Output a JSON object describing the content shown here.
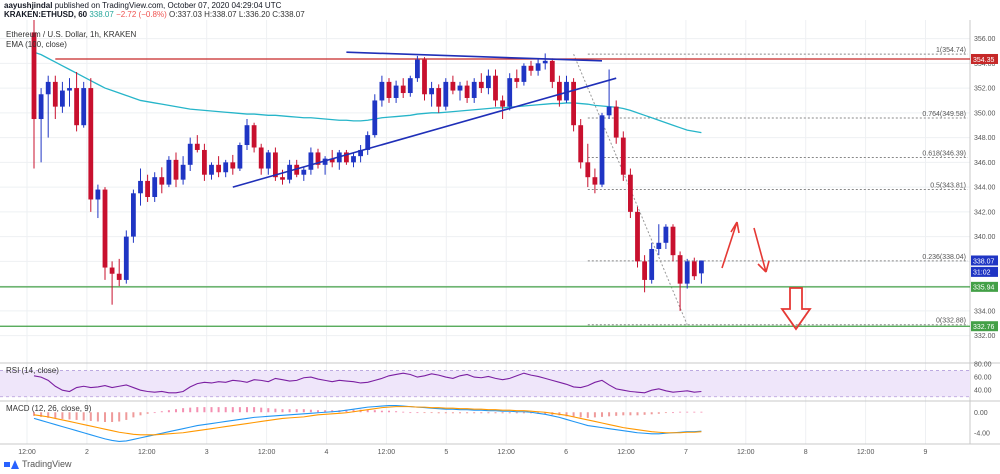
{
  "header": {
    "line1_user": "aayushjindal",
    "line1_rest": " published on TradingView.com, October 07, 2020 04:29:04 UTC",
    "symbol": "KRAKEN:ETHUSD, 60",
    "last": "338.07",
    "change": "−2.72 (−0.8%)",
    "ohlc": "O:337.03 H:338.07 L:336.20 C:338.07"
  },
  "footer": {
    "brand": "TradingView"
  },
  "colors": {
    "up": "#26a69a",
    "down": "#ef5350",
    "candle_body": "#1f35c4",
    "candle_body_down": "#c8102e",
    "ema": "#26b5c9",
    "trendline": "#1f2fb8",
    "resistance": "#c62828",
    "support": "#43a047",
    "fib": "#888888",
    "rsi_line": "#7b1fa2",
    "rsi_band": "#efe6fa",
    "macd_line": "#2196f3",
    "signal_line": "#ff9800",
    "arrow_red": "#e53935"
  },
  "chart_data": [
    {
      "type": "candlestick",
      "title": "Ethereum / U.S. Dollar, 1h, KRAKEN",
      "pane": "price",
      "ylim": [
        331,
        357.5
      ],
      "y_ticks": [
        356.0,
        354.0,
        352.0,
        350.0,
        348.0,
        346.0,
        344.0,
        342.0,
        340.0,
        338.0,
        336.0,
        334.0,
        332.0
      ],
      "x_tick_labels": [
        "12:00",
        "2",
        "12:00",
        "3",
        "12:00",
        "4",
        "12:00",
        "5",
        "12:00",
        "6",
        "12:00",
        "7",
        "12:00",
        "8",
        "12:00",
        "9"
      ],
      "candles": [
        {
          "o": 356.5,
          "h": 357.5,
          "l": 345.5,
          "c": 349.5
        },
        {
          "o": 349.5,
          "h": 352.0,
          "l": 346.0,
          "c": 351.5
        },
        {
          "o": 351.5,
          "h": 353.0,
          "l": 348.0,
          "c": 352.5
        },
        {
          "o": 352.5,
          "h": 353.0,
          "l": 349.5,
          "c": 350.5
        },
        {
          "o": 350.5,
          "h": 352.5,
          "l": 350.0,
          "c": 351.8
        },
        {
          "o": 351.8,
          "h": 352.8,
          "l": 350.5,
          "c": 352.0
        },
        {
          "o": 352.0,
          "h": 353.3,
          "l": 348.5,
          "c": 349.0
        },
        {
          "o": 349.0,
          "h": 352.5,
          "l": 348.8,
          "c": 352.0
        },
        {
          "o": 352.0,
          "h": 352.8,
          "l": 342.0,
          "c": 343.0
        },
        {
          "o": 343.0,
          "h": 344.2,
          "l": 341.5,
          "c": 343.8
        },
        {
          "o": 343.8,
          "h": 344.0,
          "l": 336.5,
          "c": 337.5
        },
        {
          "o": 337.5,
          "h": 338.0,
          "l": 334.5,
          "c": 337.0
        },
        {
          "o": 337.0,
          "h": 338.2,
          "l": 336.0,
          "c": 336.5
        },
        {
          "o": 336.5,
          "h": 340.5,
          "l": 336.2,
          "c": 340.0
        },
        {
          "o": 340.0,
          "h": 343.8,
          "l": 339.5,
          "c": 343.5
        },
        {
          "o": 343.5,
          "h": 345.5,
          "l": 342.5,
          "c": 344.5
        },
        {
          "o": 344.5,
          "h": 345.0,
          "l": 342.8,
          "c": 343.2
        },
        {
          "o": 343.2,
          "h": 345.2,
          "l": 342.8,
          "c": 344.8
        },
        {
          "o": 344.8,
          "h": 345.6,
          "l": 343.5,
          "c": 344.2
        },
        {
          "o": 344.2,
          "h": 346.5,
          "l": 344.0,
          "c": 346.2
        },
        {
          "o": 346.2,
          "h": 346.8,
          "l": 344.0,
          "c": 344.6
        },
        {
          "o": 344.6,
          "h": 346.5,
          "l": 344.2,
          "c": 345.8
        },
        {
          "o": 345.8,
          "h": 348.0,
          "l": 345.3,
          "c": 347.5
        },
        {
          "o": 347.5,
          "h": 348.2,
          "l": 346.8,
          "c": 347.0
        },
        {
          "o": 347.0,
          "h": 347.5,
          "l": 344.5,
          "c": 345.0
        },
        {
          "o": 345.0,
          "h": 346.0,
          "l": 344.6,
          "c": 345.8
        },
        {
          "o": 345.8,
          "h": 346.5,
          "l": 344.8,
          "c": 345.2
        },
        {
          "o": 345.2,
          "h": 346.2,
          "l": 344.8,
          "c": 346.0
        },
        {
          "o": 346.0,
          "h": 346.6,
          "l": 345.0,
          "c": 345.5
        },
        {
          "o": 345.5,
          "h": 347.6,
          "l": 345.3,
          "c": 347.4
        },
        {
          "o": 347.4,
          "h": 349.5,
          "l": 347.0,
          "c": 349.0
        },
        {
          "o": 349.0,
          "h": 349.2,
          "l": 346.8,
          "c": 347.2
        },
        {
          "o": 347.2,
          "h": 347.5,
          "l": 345.0,
          "c": 345.5
        },
        {
          "o": 345.5,
          "h": 347.0,
          "l": 345.0,
          "c": 346.8
        },
        {
          "o": 346.8,
          "h": 347.2,
          "l": 344.5,
          "c": 344.8
        },
        {
          "o": 344.8,
          "h": 345.4,
          "l": 344.2,
          "c": 344.6
        },
        {
          "o": 344.6,
          "h": 346.2,
          "l": 344.3,
          "c": 345.8
        },
        {
          "o": 345.8,
          "h": 346.2,
          "l": 344.8,
          "c": 345.0
        },
        {
          "o": 345.0,
          "h": 345.6,
          "l": 344.5,
          "c": 345.4
        },
        {
          "o": 345.4,
          "h": 347.2,
          "l": 345.0,
          "c": 346.8
        },
        {
          "o": 346.8,
          "h": 347.1,
          "l": 345.5,
          "c": 345.8
        },
        {
          "o": 345.8,
          "h": 346.5,
          "l": 345.0,
          "c": 346.3
        },
        {
          "o": 346.3,
          "h": 347.0,
          "l": 345.6,
          "c": 346.0
        },
        {
          "o": 346.0,
          "h": 347.0,
          "l": 345.4,
          "c": 346.8
        },
        {
          "o": 346.8,
          "h": 347.0,
          "l": 345.8,
          "c": 346.0
        },
        {
          "o": 346.0,
          "h": 346.8,
          "l": 345.6,
          "c": 346.5
        },
        {
          "o": 346.5,
          "h": 347.4,
          "l": 346.0,
          "c": 347.0
        },
        {
          "o": 347.0,
          "h": 348.5,
          "l": 346.6,
          "c": 348.2
        },
        {
          "o": 348.2,
          "h": 351.5,
          "l": 348.0,
          "c": 351.0
        },
        {
          "o": 351.0,
          "h": 353.0,
          "l": 350.5,
          "c": 352.5
        },
        {
          "o": 352.5,
          "h": 352.8,
          "l": 350.8,
          "c": 351.2
        },
        {
          "o": 351.2,
          "h": 352.6,
          "l": 350.8,
          "c": 352.2
        },
        {
          "o": 352.2,
          "h": 352.8,
          "l": 351.2,
          "c": 351.6
        },
        {
          "o": 351.6,
          "h": 353.0,
          "l": 351.3,
          "c": 352.8
        },
        {
          "o": 352.8,
          "h": 354.6,
          "l": 352.5,
          "c": 354.3
        },
        {
          "o": 354.3,
          "h": 354.5,
          "l": 351.0,
          "c": 351.5
        },
        {
          "o": 351.5,
          "h": 352.5,
          "l": 350.5,
          "c": 352.0
        },
        {
          "o": 352.0,
          "h": 352.3,
          "l": 350.0,
          "c": 350.5
        },
        {
          "o": 350.5,
          "h": 352.8,
          "l": 350.2,
          "c": 352.5
        },
        {
          "o": 352.5,
          "h": 353.0,
          "l": 351.5,
          "c": 351.8
        },
        {
          "o": 351.8,
          "h": 352.5,
          "l": 351.0,
          "c": 352.2
        },
        {
          "o": 352.2,
          "h": 352.6,
          "l": 350.8,
          "c": 351.2
        },
        {
          "o": 351.2,
          "h": 352.8,
          "l": 350.8,
          "c": 352.5
        },
        {
          "o": 352.5,
          "h": 353.2,
          "l": 351.6,
          "c": 352.0
        },
        {
          "o": 352.0,
          "h": 353.5,
          "l": 351.5,
          "c": 353.0
        },
        {
          "o": 353.0,
          "h": 353.5,
          "l": 350.5,
          "c": 351.0
        },
        {
          "o": 351.0,
          "h": 351.4,
          "l": 349.5,
          "c": 350.5
        },
        {
          "o": 350.5,
          "h": 353.2,
          "l": 350.2,
          "c": 352.8
        },
        {
          "o": 352.8,
          "h": 353.5,
          "l": 352.0,
          "c": 352.5
        },
        {
          "o": 352.5,
          "h": 354.0,
          "l": 352.2,
          "c": 353.8
        },
        {
          "o": 353.8,
          "h": 354.2,
          "l": 353.0,
          "c": 353.4
        },
        {
          "o": 353.4,
          "h": 354.4,
          "l": 353.0,
          "c": 354.0
        },
        {
          "o": 354.0,
          "h": 354.8,
          "l": 353.5,
          "c": 354.2
        },
        {
          "o": 354.2,
          "h": 354.4,
          "l": 352.0,
          "c": 352.5
        },
        {
          "o": 352.5,
          "h": 353.0,
          "l": 350.5,
          "c": 351.0
        },
        {
          "o": 351.0,
          "h": 353.0,
          "l": 350.8,
          "c": 352.5
        },
        {
          "o": 352.5,
          "h": 352.8,
          "l": 348.5,
          "c": 349.0
        },
        {
          "o": 349.0,
          "h": 349.5,
          "l": 345.5,
          "c": 346.0
        },
        {
          "o": 346.0,
          "h": 347.5,
          "l": 344.0,
          "c": 344.8
        },
        {
          "o": 344.8,
          "h": 345.5,
          "l": 343.5,
          "c": 344.2
        },
        {
          "o": 344.2,
          "h": 350.0,
          "l": 344.0,
          "c": 349.8
        },
        {
          "o": 349.8,
          "h": 353.5,
          "l": 349.5,
          "c": 350.5
        },
        {
          "o": 350.5,
          "h": 351.0,
          "l": 347.5,
          "c": 348.0
        },
        {
          "o": 348.0,
          "h": 348.5,
          "l": 344.5,
          "c": 345.0
        },
        {
          "o": 345.0,
          "h": 345.5,
          "l": 341.5,
          "c": 342.0
        },
        {
          "o": 342.0,
          "h": 342.4,
          "l": 337.5,
          "c": 338.0
        },
        {
          "o": 338.0,
          "h": 338.5,
          "l": 335.5,
          "c": 336.5
        },
        {
          "o": 336.5,
          "h": 339.5,
          "l": 336.2,
          "c": 339.0
        },
        {
          "o": 339.0,
          "h": 341.0,
          "l": 338.5,
          "c": 339.5
        },
        {
          "o": 339.5,
          "h": 341.0,
          "l": 339.0,
          "c": 340.8
        },
        {
          "o": 340.8,
          "h": 341.0,
          "l": 338.0,
          "c": 338.5
        },
        {
          "o": 338.5,
          "h": 338.8,
          "l": 334.0,
          "c": 336.2
        },
        {
          "o": 336.2,
          "h": 338.2,
          "l": 335.8,
          "c": 338.0
        },
        {
          "o": 338.0,
          "h": 338.3,
          "l": 336.5,
          "c": 336.8
        },
        {
          "o": 337.03,
          "h": 338.07,
          "l": 336.2,
          "c": 338.07
        }
      ],
      "ema_100": {
        "label": "EMA (100, close)",
        "values": [
          354.9,
          354.7,
          354.4,
          354.1,
          353.8,
          353.5,
          353.2,
          352.9,
          352.6,
          352.3,
          352.0,
          351.8,
          351.6,
          351.4,
          351.2,
          351.0,
          350.9,
          350.8,
          350.7,
          350.6,
          350.5,
          350.4,
          350.3,
          350.25,
          350.2,
          350.15,
          350.1,
          350.05,
          350.0,
          349.95,
          349.9,
          349.9,
          349.85,
          349.8,
          349.8,
          349.75,
          349.7,
          349.65,
          349.6,
          349.6,
          349.55,
          349.5,
          349.45,
          349.4,
          349.4,
          349.35,
          349.35,
          349.4,
          349.5,
          349.6,
          349.65,
          349.7,
          349.75,
          349.8,
          349.9,
          349.95,
          350.0,
          350.0,
          350.05,
          350.1,
          350.15,
          350.2,
          350.25,
          350.3,
          350.35,
          350.4,
          350.4,
          350.45,
          350.5,
          350.55,
          350.6,
          350.65,
          350.7,
          350.75,
          350.75,
          350.8,
          350.8,
          350.75,
          350.7,
          350.6,
          350.55,
          350.5,
          350.45,
          350.35,
          350.2,
          350.0,
          349.8,
          349.6,
          349.4,
          349.2,
          349.0,
          348.8,
          348.6,
          348.5,
          348.4
        ]
      },
      "annotations": {
        "resistance_level": 354.35,
        "support_levels": [
          335.94,
          332.76
        ],
        "rising_trendline": [
          {
            "i": 28,
            "p": 344.0
          },
          {
            "i": 82,
            "p": 352.8
          }
        ],
        "falling_trendline": [
          {
            "i": 44,
            "p": 354.9
          },
          {
            "i": 80,
            "p": 354.2
          }
        ],
        "fib_levels": [
          {
            "ratio": "1",
            "price": 354.74,
            "label": "1(354.74)"
          },
          {
            "ratio": "0.764",
            "price": 349.58,
            "label": "0.764(349.58)"
          },
          {
            "ratio": "0.618",
            "price": 346.39,
            "label": "0.618(346.39)"
          },
          {
            "ratio": "0.5",
            "price": 343.81,
            "label": "0.5(343.81)"
          },
          {
            "ratio": "0.236",
            "price": 338.04,
            "label": "0.236(338.04)"
          },
          {
            "ratio": "0",
            "price": 332.88,
            "label": "0(332.88)"
          }
        ],
        "price_labels": [
          {
            "text": "354.35",
            "price": 354.35,
            "bg": "#c62828"
          },
          {
            "text": "338.07",
            "price": 338.07,
            "bg": "#1f35c4"
          },
          {
            "text": "31:02",
            "price": 337.15,
            "bg": "#1f35c4"
          },
          {
            "text": "335.94",
            "price": 335.94,
            "bg": "#43a047"
          },
          {
            "text": "332.76",
            "price": 332.76,
            "bg": "#43a047"
          }
        ]
      }
    },
    {
      "type": "line",
      "pane": "rsi",
      "title": "RSI (14, close)",
      "ylim": [
        25,
        80
      ],
      "y_ticks": [
        80.0,
        60.0,
        40.0
      ],
      "band": [
        30,
        70
      ],
      "values": [
        62,
        60,
        55,
        46,
        40,
        38,
        44,
        46,
        44,
        45,
        47,
        44,
        46,
        48,
        44,
        40,
        38,
        37,
        38,
        36,
        36,
        38,
        45,
        50,
        52,
        51,
        53,
        52,
        55,
        54,
        52,
        56,
        55,
        53,
        58,
        56,
        54,
        55,
        59,
        60,
        57,
        55,
        53,
        55,
        54,
        53,
        51,
        52,
        55,
        58,
        62,
        64,
        66,
        64,
        60,
        62,
        65,
        63,
        60,
        58,
        62,
        64,
        60,
        59,
        61,
        58,
        56,
        58,
        62,
        66,
        63,
        61,
        58,
        55,
        52,
        49,
        45,
        44,
        47,
        52,
        55,
        48,
        42,
        40,
        38,
        37,
        36,
        40,
        42,
        39,
        37,
        38,
        39,
        37,
        38
      ]
    },
    {
      "type": "bar_line",
      "pane": "macd",
      "title": "MACD (12, 26, close, 9)",
      "ylim": [
        -6,
        2
      ],
      "y_ticks": [
        0.0,
        -4.0
      ],
      "macd": [
        -1.2,
        -1.6,
        -2.0,
        -2.4,
        -2.8,
        -3.2,
        -3.6,
        -4.0,
        -4.4,
        -4.8,
        -5.2,
        -5.5,
        -5.7,
        -5.6,
        -5.3,
        -5.0,
        -4.7,
        -4.4,
        -4.1,
        -3.8,
        -3.5,
        -3.2,
        -2.9,
        -2.6,
        -2.4,
        -2.2,
        -2.0,
        -1.8,
        -1.6,
        -1.4,
        -1.2,
        -1.0,
        -0.9,
        -0.8,
        -0.7,
        -0.6,
        -0.5,
        -0.4,
        -0.3,
        -0.2,
        -0.1,
        0.0,
        0.1,
        0.2,
        0.4,
        0.6,
        0.8,
        1.0,
        1.1,
        1.2,
        1.3,
        1.3,
        1.2,
        1.1,
        1.0,
        0.9,
        0.8,
        0.7,
        0.6,
        0.6,
        0.5,
        0.5,
        0.4,
        0.4,
        0.3,
        0.3,
        0.2,
        0.2,
        0.1,
        0.1,
        0.0,
        -0.2,
        -0.4,
        -0.7,
        -1.0,
        -1.4,
        -1.8,
        -2.2,
        -2.6,
        -2.8,
        -3.0,
        -3.2,
        -3.4,
        -3.6,
        -3.8,
        -4.0,
        -4.1,
        -4.2,
        -4.2,
        -4.1,
        -4.0,
        -3.9,
        -3.8,
        -3.8,
        -3.7
      ],
      "signal": [
        -0.5,
        -0.7,
        -0.9,
        -1.2,
        -1.5,
        -1.8,
        -2.1,
        -2.4,
        -2.7,
        -3.0,
        -3.3,
        -3.6,
        -3.9,
        -4.1,
        -4.3,
        -4.4,
        -4.4,
        -4.4,
        -4.3,
        -4.2,
        -4.1,
        -4.0,
        -3.8,
        -3.6,
        -3.4,
        -3.2,
        -3.0,
        -2.8,
        -2.6,
        -2.4,
        -2.2,
        -2.0,
        -1.8,
        -1.6,
        -1.4,
        -1.2,
        -1.1,
        -1.0,
        -0.9,
        -0.7,
        -0.5,
        -0.4,
        -0.3,
        -0.2,
        -0.1,
        0.1,
        0.3,
        0.5,
        0.7,
        0.9,
        1.0,
        1.1,
        1.1,
        1.1,
        1.0,
        1.0,
        0.9,
        0.9,
        0.8,
        0.8,
        0.7,
        0.7,
        0.6,
        0.6,
        0.5,
        0.5,
        0.4,
        0.4,
        0.3,
        0.3,
        0.2,
        0.1,
        0.0,
        -0.2,
        -0.4,
        -0.6,
        -0.9,
        -1.2,
        -1.5,
        -1.8,
        -2.1,
        -2.4,
        -2.7,
        -3.0,
        -3.2,
        -3.4,
        -3.6,
        -3.8,
        -3.9,
        -4.0,
        -4.0,
        -4.0,
        -3.9,
        -3.9,
        -3.8
      ]
    }
  ]
}
